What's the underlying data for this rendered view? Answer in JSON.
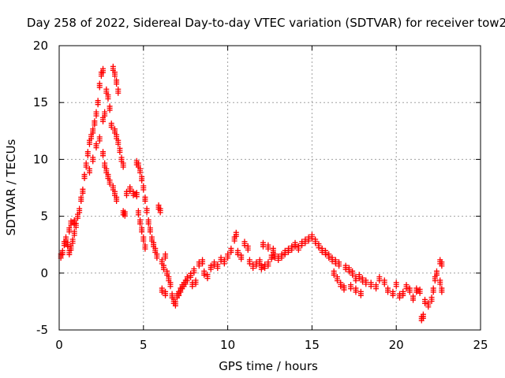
{
  "chart_data": {
    "type": "scatter",
    "title": "Day 258 of 2022, Sidereal Day-to-day VTEC variation (SDTVAR) for receiver tow2",
    "xlabel": "GPS time / hours",
    "ylabel": "SDTVAR / TECUs",
    "xlim": [
      0,
      25
    ],
    "ylim": [
      -5,
      20
    ],
    "xticks": [
      0,
      5,
      10,
      15,
      20,
      25
    ],
    "yticks": [
      -5,
      0,
      5,
      10,
      15,
      20
    ],
    "grid": true,
    "marker": "+",
    "series": [
      {
        "name": "SDTVAR",
        "color": "#ff0000",
        "points": [
          [
            0.1,
            1.5
          ],
          [
            0.2,
            1.8
          ],
          [
            0.3,
            2.6
          ],
          [
            0.4,
            3.0
          ],
          [
            0.5,
            2.5
          ],
          [
            0.6,
            1.8
          ],
          [
            0.7,
            2.2
          ],
          [
            0.8,
            2.8
          ],
          [
            0.9,
            3.5
          ],
          [
            1.0,
            4.2
          ],
          [
            0.6,
            3.8
          ],
          [
            0.7,
            4.4
          ],
          [
            0.9,
            4.5
          ],
          [
            1.1,
            5.0
          ],
          [
            1.2,
            5.5
          ],
          [
            1.3,
            6.5
          ],
          [
            1.4,
            7.2
          ],
          [
            1.5,
            8.5
          ],
          [
            1.6,
            9.5
          ],
          [
            1.7,
            10.5
          ],
          [
            1.8,
            11.5
          ],
          [
            1.9,
            12.0
          ],
          [
            2.0,
            12.5
          ],
          [
            2.1,
            13.2
          ],
          [
            2.2,
            14.0
          ],
          [
            2.3,
            15.0
          ],
          [
            2.4,
            16.5
          ],
          [
            2.5,
            17.5
          ],
          [
            2.6,
            17.8
          ],
          [
            1.8,
            9.0
          ],
          [
            2.0,
            10.0
          ],
          [
            2.2,
            11.2
          ],
          [
            2.4,
            11.8
          ],
          [
            2.6,
            13.5
          ],
          [
            2.7,
            14.0
          ],
          [
            2.8,
            16.0
          ],
          [
            2.9,
            15.5
          ],
          [
            3.0,
            14.5
          ],
          [
            3.1,
            13.0
          ],
          [
            3.2,
            18.0
          ],
          [
            3.3,
            17.5
          ],
          [
            3.4,
            16.8
          ],
          [
            3.5,
            16.0
          ],
          [
            2.6,
            10.5
          ],
          [
            2.7,
            9.5
          ],
          [
            2.8,
            9.0
          ],
          [
            2.9,
            8.5
          ],
          [
            3.0,
            8.0
          ],
          [
            3.2,
            7.5
          ],
          [
            3.3,
            7.0
          ],
          [
            3.4,
            6.5
          ],
          [
            3.3,
            12.5
          ],
          [
            3.4,
            12.0
          ],
          [
            3.5,
            11.5
          ],
          [
            3.6,
            10.8
          ],
          [
            3.7,
            10.0
          ],
          [
            3.8,
            9.5
          ],
          [
            3.8,
            5.3
          ],
          [
            3.9,
            5.2
          ],
          [
            4.0,
            7.0
          ],
          [
            4.2,
            7.4
          ],
          [
            4.4,
            7.0
          ],
          [
            4.6,
            6.9
          ],
          [
            4.6,
            9.7
          ],
          [
            4.7,
            9.5
          ],
          [
            4.8,
            9.0
          ],
          [
            4.9,
            8.3
          ],
          [
            5.0,
            7.5
          ],
          [
            5.1,
            6.5
          ],
          [
            5.2,
            5.5
          ],
          [
            4.7,
            5.3
          ],
          [
            4.8,
            4.5
          ],
          [
            4.9,
            3.8
          ],
          [
            5.0,
            3.0
          ],
          [
            5.1,
            2.3
          ],
          [
            5.3,
            4.5
          ],
          [
            5.4,
            3.8
          ],
          [
            5.5,
            3.0
          ],
          [
            5.6,
            2.5
          ],
          [
            5.7,
            2.0
          ],
          [
            5.8,
            1.5
          ],
          [
            5.9,
            5.8
          ],
          [
            6.0,
            5.5
          ],
          [
            6.1,
            1.0
          ],
          [
            6.2,
            0.5
          ],
          [
            6.3,
            1.5
          ],
          [
            6.4,
            0.0
          ],
          [
            6.5,
            -0.5
          ],
          [
            6.1,
            -1.5
          ],
          [
            6.3,
            -1.8
          ],
          [
            6.6,
            -1.0
          ],
          [
            6.7,
            -2.0
          ],
          [
            6.8,
            -2.5
          ],
          [
            6.9,
            -2.7
          ],
          [
            7.0,
            -2.0
          ],
          [
            7.1,
            -1.8
          ],
          [
            7.2,
            -1.5
          ],
          [
            7.3,
            -1.2
          ],
          [
            7.4,
            -1.0
          ],
          [
            7.5,
            -0.8
          ],
          [
            7.6,
            -0.5
          ],
          [
            7.8,
            -0.2
          ],
          [
            8.0,
            0.2
          ],
          [
            7.9,
            -1.0
          ],
          [
            8.1,
            -0.8
          ],
          [
            8.3,
            0.8
          ],
          [
            8.5,
            1.0
          ],
          [
            8.6,
            0.0
          ],
          [
            8.8,
            -0.3
          ],
          [
            9.0,
            0.5
          ],
          [
            9.2,
            0.8
          ],
          [
            9.4,
            0.6
          ],
          [
            9.6,
            1.2
          ],
          [
            9.8,
            1.0
          ],
          [
            10.0,
            1.5
          ],
          [
            10.2,
            2.0
          ],
          [
            10.4,
            3.0
          ],
          [
            10.5,
            3.4
          ],
          [
            10.6,
            1.8
          ],
          [
            10.8,
            1.4
          ],
          [
            11.0,
            2.6
          ],
          [
            11.2,
            2.2
          ],
          [
            11.3,
            1.0
          ],
          [
            11.5,
            0.6
          ],
          [
            11.7,
            0.8
          ],
          [
            11.9,
            1.0
          ],
          [
            12.0,
            0.5
          ],
          [
            12.2,
            0.6
          ],
          [
            12.4,
            0.8
          ],
          [
            12.6,
            1.4
          ],
          [
            12.1,
            2.5
          ],
          [
            12.4,
            2.3
          ],
          [
            12.7,
            2.0
          ],
          [
            12.8,
            1.5
          ],
          [
            13.0,
            1.3
          ],
          [
            13.2,
            1.5
          ],
          [
            13.4,
            1.8
          ],
          [
            13.6,
            2.0
          ],
          [
            13.8,
            2.2
          ],
          [
            14.0,
            2.5
          ],
          [
            14.2,
            2.2
          ],
          [
            14.4,
            2.6
          ],
          [
            14.6,
            2.8
          ],
          [
            14.8,
            3.0
          ],
          [
            15.0,
            3.2
          ],
          [
            15.2,
            2.8
          ],
          [
            15.4,
            2.4
          ],
          [
            15.6,
            2.0
          ],
          [
            15.8,
            1.8
          ],
          [
            16.0,
            1.5
          ],
          [
            16.2,
            1.2
          ],
          [
            16.4,
            1.0
          ],
          [
            16.6,
            0.8
          ],
          [
            16.3,
            0.0
          ],
          [
            16.5,
            -0.5
          ],
          [
            16.7,
            -1.0
          ],
          [
            16.9,
            -1.3
          ],
          [
            17.0,
            0.5
          ],
          [
            17.2,
            0.3
          ],
          [
            17.4,
            0.0
          ],
          [
            17.6,
            -0.5
          ],
          [
            17.8,
            -0.3
          ],
          [
            18.0,
            -0.6
          ],
          [
            17.3,
            -1.2
          ],
          [
            17.6,
            -1.5
          ],
          [
            17.9,
            -1.8
          ],
          [
            18.2,
            -0.8
          ],
          [
            18.5,
            -1.0
          ],
          [
            18.8,
            -1.2
          ],
          [
            19.0,
            -0.5
          ],
          [
            19.3,
            -0.8
          ],
          [
            19.5,
            -1.5
          ],
          [
            19.8,
            -1.8
          ],
          [
            20.0,
            -1.0
          ],
          [
            20.2,
            -2.0
          ],
          [
            20.4,
            -1.8
          ],
          [
            20.6,
            -1.2
          ],
          [
            20.8,
            -1.5
          ],
          [
            21.0,
            -2.2
          ],
          [
            21.2,
            -1.5
          ],
          [
            21.4,
            -1.6
          ],
          [
            21.5,
            -4.0
          ],
          [
            21.6,
            -3.8
          ],
          [
            21.7,
            -2.5
          ],
          [
            21.9,
            -2.8
          ],
          [
            22.1,
            -2.3
          ],
          [
            22.2,
            -1.5
          ],
          [
            22.3,
            -0.5
          ],
          [
            22.4,
            0.0
          ],
          [
            22.6,
            1.0
          ],
          [
            22.7,
            0.8
          ],
          [
            22.6,
            -0.8
          ],
          [
            22.7,
            -1.5
          ]
        ]
      }
    ]
  }
}
